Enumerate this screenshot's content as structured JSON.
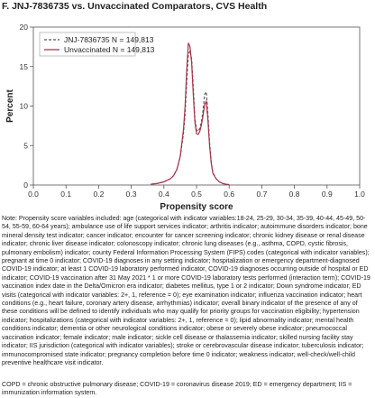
{
  "title": "F. JNJ-7836735 vs. Unvaccinated Comparators, CVS Health",
  "note": "Note: Propensity score variables included: age (categorical with indicator variables:18-24, 25-29, 30-34, 35-39, 40-44, 45-49, 50-54, 55-59, 60-64 years); ambulance use of life support services indicator; arthritis indicator; autoimmune disorders indicator; bone mineral density test indicator; cancer indicator; encounter for cancer screening indicator; chronic kidney disease or renal disease indicator; chronic liver disease indicator; colonoscopy indicator; chronic lung diseases (e.g., asthma, COPD, cystic fibrosis, pulmonary embolism) indicator; county Federal Information Processing System (FIPS) codes (categorical with indicator variables); pregnant at time 0 indicator; COVID-19 diagnoses in any setting indicator; hospitalization or emergency department-diagnosed COVID-19 indicator; at least 1 COVID-19 laboratory performed indicator, COVID-19 diagnoses occurring outside of hospital or ED indicator; COVID-19 vaccination after 31 May 2021 * 1 or more COVID-19 laboratory tests performed (interaction term); COVID-19 vaccination index date in the Delta/Omicron era indicator; diabetes mellitus, type 1 or 2 indicator; Down syndrome indicator; ED visits (categorical with indicator variables: 2+, 1, reference = 0); eye examination indicator; influenza vaccination indicator; heart conditions (e.g., heart failure, coronary artery disease, arrhythmias) indicator; overall binary indicator of the presence of any of these conditions will be defined to identify individuals who may qualify for priority groups for vaccination eligibility; hypertension indicator; hospitalizations (categorical with indicator variables: 2+, 1, reference = 0); lipid abnormality indicator; mental health conditions indicator; dementia or other neurological conditions indicator; obese or severely obese indicator; pneumococcal vaccination indicator; female indicator; male indicator; sickle cell disease or thalassemia indicator; skilled nursing facility stay indicator; IIS jurisdiction (categorical with indicator variables); stroke or cerebrovascular disease indicator; tuberculosis indicator; immunocompromised state indicator; pregnancy completion before time 0 indicator; weakness indicator; well-check/well-child preventive healthcare visit indicator.",
  "abbreviations": "COPD = chronic obstructive pulmonary disease; COVID-19 = coronavirus disease 2019; ED = emergency department; IIS = immunization information system.",
  "colors": {
    "vaccinated": "#555555",
    "unvaccinated": "#a8324a",
    "axis": "#555555"
  },
  "chart_data": {
    "type": "line",
    "xlabel": "Propensity score",
    "ylabel": "Percent",
    "xlim": [
      0.0,
      1.0
    ],
    "ylim": [
      0,
      20
    ],
    "xticks": [
      "0.0",
      "0.1",
      "0.2",
      "0.3",
      "0.4",
      "0.5",
      "0.6",
      "0.7",
      "0.8",
      "0.9",
      "1.0"
    ],
    "yticks": [
      "0",
      "5",
      "10",
      "15",
      "20"
    ],
    "legend_position": "top-left",
    "series": [
      {
        "name": "JNJ-7836735 N = 149,813",
        "style": "dashed",
        "x": [
          0.36,
          0.38,
          0.4,
          0.42,
          0.43,
          0.44,
          0.45,
          0.46,
          0.465,
          0.47,
          0.475,
          0.48,
          0.485,
          0.49,
          0.495,
          0.5,
          0.505,
          0.51,
          0.515,
          0.52,
          0.525,
          0.53,
          0.535,
          0.54,
          0.545,
          0.55,
          0.56,
          0.57,
          0.58,
          0.59,
          0.6
        ],
        "y": [
          0.1,
          0.2,
          0.4,
          0.8,
          1.2,
          2.0,
          3.5,
          6.5,
          9.0,
          13.0,
          16.5,
          17.0,
          16.0,
          12.5,
          8.5,
          7.0,
          6.8,
          7.2,
          8.0,
          9.5,
          11.5,
          11.8,
          9.0,
          5.5,
          3.0,
          1.6,
          0.8,
          0.4,
          0.2,
          0.1,
          0.05
        ]
      },
      {
        "name": "Unvaccinated N = 149,813",
        "style": "solid",
        "x": [
          0.36,
          0.38,
          0.4,
          0.42,
          0.43,
          0.44,
          0.45,
          0.46,
          0.465,
          0.47,
          0.475,
          0.48,
          0.485,
          0.49,
          0.495,
          0.5,
          0.505,
          0.51,
          0.515,
          0.52,
          0.525,
          0.53,
          0.535,
          0.54,
          0.545,
          0.55,
          0.56,
          0.57,
          0.58,
          0.59,
          0.6
        ],
        "y": [
          0.1,
          0.2,
          0.4,
          0.8,
          1.2,
          2.0,
          3.6,
          7.0,
          10.0,
          14.5,
          18.0,
          17.5,
          15.5,
          11.5,
          8.0,
          6.5,
          6.4,
          6.8,
          7.6,
          8.8,
          10.2,
          10.6,
          8.2,
          5.0,
          2.8,
          1.5,
          0.8,
          0.4,
          0.2,
          0.1,
          0.05
        ]
      }
    ]
  }
}
